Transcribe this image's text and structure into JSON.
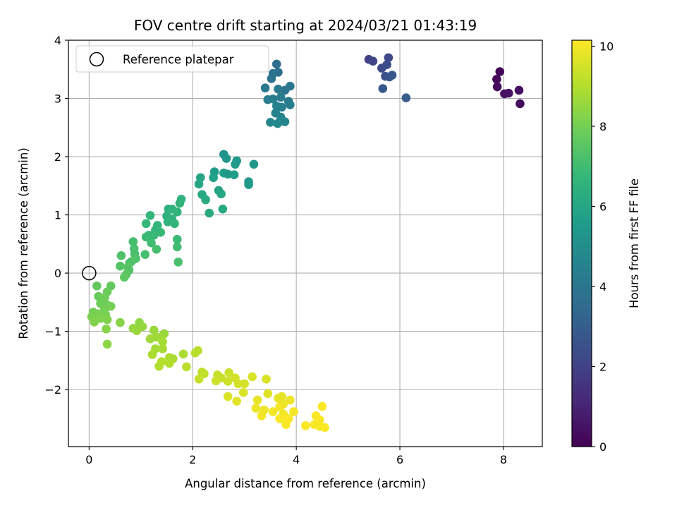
{
  "chart_data": {
    "type": "scatter",
    "title": "FOV centre drift starting at 2024/03/21 01:43:19",
    "xlabel": "Angular distance from reference (arcmin)",
    "ylabel": "Rotation from reference (arcmin)",
    "xlim": [
      -0.4,
      8.75
    ],
    "ylim": [
      -2.98,
      4.0
    ],
    "xticks": [
      0,
      2,
      4,
      6,
      8
    ],
    "xtick_labels": [
      "0",
      "2",
      "4",
      "6",
      "8"
    ],
    "yticks": [
      -2,
      -1,
      0,
      1,
      2,
      3,
      4
    ],
    "ytick_labels": [
      "−2",
      "−1",
      "0",
      "1",
      "2",
      "3",
      "4"
    ],
    "grid": true,
    "legend": {
      "placement": "top-left",
      "entries": [
        "Reference platepar"
      ]
    },
    "colorbar": {
      "label": "Hours from first FF file",
      "colormap": "viridis",
      "range": [
        0,
        10.15
      ],
      "ticks": [
        0,
        2,
        4,
        6,
        8,
        10
      ],
      "tick_labels": [
        "0",
        "2",
        "4",
        "6",
        "8",
        "10"
      ]
    },
    "reference_point": {
      "x": 0,
      "y": 0
    },
    "points": [
      {
        "x": 7.93,
        "y": 3.46,
        "t": 0.1
      },
      {
        "x": 7.87,
        "y": 3.33,
        "t": 0.2
      },
      {
        "x": 7.88,
        "y": 3.2,
        "t": 0.3
      },
      {
        "x": 8.02,
        "y": 3.08,
        "t": 0.4
      },
      {
        "x": 8.1,
        "y": 3.09,
        "t": 0.5
      },
      {
        "x": 8.3,
        "y": 3.14,
        "t": 0.4
      },
      {
        "x": 8.32,
        "y": 2.91,
        "t": 0.3
      },
      {
        "x": 5.4,
        "y": 3.67,
        "t": 2.0
      },
      {
        "x": 5.48,
        "y": 3.64,
        "t": 2.1
      },
      {
        "x": 5.78,
        "y": 3.7,
        "t": 2.2
      },
      {
        "x": 5.65,
        "y": 3.52,
        "t": 2.3
      },
      {
        "x": 5.75,
        "y": 3.58,
        "t": 2.4
      },
      {
        "x": 5.72,
        "y": 3.38,
        "t": 2.5
      },
      {
        "x": 5.8,
        "y": 3.37,
        "t": 2.6
      },
      {
        "x": 5.85,
        "y": 3.4,
        "t": 2.7
      },
      {
        "x": 5.67,
        "y": 3.17,
        "t": 2.8
      },
      {
        "x": 6.12,
        "y": 3.01,
        "t": 2.9
      },
      {
        "x": 3.62,
        "y": 3.59,
        "t": 3.6
      },
      {
        "x": 3.65,
        "y": 3.45,
        "t": 3.7
      },
      {
        "x": 3.55,
        "y": 3.43,
        "t": 3.8
      },
      {
        "x": 3.52,
        "y": 3.34,
        "t": 3.9
      },
      {
        "x": 3.88,
        "y": 3.21,
        "t": 4.0
      },
      {
        "x": 3.4,
        "y": 3.18,
        "t": 4.1
      },
      {
        "x": 3.65,
        "y": 3.16,
        "t": 4.2
      },
      {
        "x": 3.78,
        "y": 3.14,
        "t": 4.0
      },
      {
        "x": 3.45,
        "y": 2.98,
        "t": 4.3
      },
      {
        "x": 3.55,
        "y": 2.99,
        "t": 4.4
      },
      {
        "x": 3.7,
        "y": 3.02,
        "t": 4.2
      },
      {
        "x": 3.85,
        "y": 2.95,
        "t": 4.1
      },
      {
        "x": 3.62,
        "y": 2.87,
        "t": 4.5
      },
      {
        "x": 3.72,
        "y": 2.85,
        "t": 4.4
      },
      {
        "x": 3.88,
        "y": 2.89,
        "t": 4.3
      },
      {
        "x": 3.7,
        "y": 2.68,
        "t": 4.6
      },
      {
        "x": 3.5,
        "y": 2.59,
        "t": 4.7
      },
      {
        "x": 3.64,
        "y": 2.57,
        "t": 4.8
      },
      {
        "x": 3.78,
        "y": 2.6,
        "t": 4.7
      },
      {
        "x": 3.6,
        "y": 2.75,
        "t": 4.5
      },
      {
        "x": 2.6,
        "y": 2.04,
        "t": 5.2
      },
      {
        "x": 2.65,
        "y": 1.97,
        "t": 5.3
      },
      {
        "x": 2.85,
        "y": 1.93,
        "t": 5.4
      },
      {
        "x": 2.82,
        "y": 1.87,
        "t": 5.5
      },
      {
        "x": 3.18,
        "y": 1.87,
        "t": 5.3
      },
      {
        "x": 2.42,
        "y": 1.74,
        "t": 5.6
      },
      {
        "x": 2.6,
        "y": 1.72,
        "t": 5.7
      },
      {
        "x": 2.68,
        "y": 1.7,
        "t": 5.5
      },
      {
        "x": 2.8,
        "y": 1.69,
        "t": 5.6
      },
      {
        "x": 3.08,
        "y": 1.57,
        "t": 5.4
      },
      {
        "x": 3.08,
        "y": 1.52,
        "t": 5.5
      },
      {
        "x": 2.15,
        "y": 1.64,
        "t": 5.9
      },
      {
        "x": 2.4,
        "y": 1.64,
        "t": 5.8
      },
      {
        "x": 2.12,
        "y": 1.53,
        "t": 6.0
      },
      {
        "x": 2.5,
        "y": 1.42,
        "t": 5.9
      },
      {
        "x": 2.55,
        "y": 1.36,
        "t": 6.0
      },
      {
        "x": 2.18,
        "y": 1.35,
        "t": 6.1
      },
      {
        "x": 2.25,
        "y": 1.26,
        "t": 6.2
      },
      {
        "x": 2.58,
        "y": 1.1,
        "t": 6.1
      },
      {
        "x": 2.32,
        "y": 1.03,
        "t": 6.2
      },
      {
        "x": 1.78,
        "y": 1.27,
        "t": 6.5
      },
      {
        "x": 1.75,
        "y": 1.2,
        "t": 6.6
      },
      {
        "x": 1.53,
        "y": 1.1,
        "t": 6.4
      },
      {
        "x": 1.6,
        "y": 1.1,
        "t": 6.5
      },
      {
        "x": 1.7,
        "y": 1.05,
        "t": 6.6
      },
      {
        "x": 1.18,
        "y": 0.99,
        "t": 6.7
      },
      {
        "x": 1.5,
        "y": 0.98,
        "t": 6.4
      },
      {
        "x": 1.6,
        "y": 0.93,
        "t": 6.5
      },
      {
        "x": 1.52,
        "y": 0.88,
        "t": 6.6
      },
      {
        "x": 1.65,
        "y": 0.85,
        "t": 6.7
      },
      {
        "x": 1.1,
        "y": 0.85,
        "t": 6.8
      },
      {
        "x": 1.32,
        "y": 0.82,
        "t": 6.7
      },
      {
        "x": 1.38,
        "y": 0.7,
        "t": 6.8
      },
      {
        "x": 1.15,
        "y": 0.65,
        "t": 6.9
      },
      {
        "x": 1.28,
        "y": 0.74,
        "t": 6.7
      },
      {
        "x": 1.25,
        "y": 0.65,
        "t": 6.8
      },
      {
        "x": 1.1,
        "y": 0.62,
        "t": 6.9
      },
      {
        "x": 1.7,
        "y": 0.58,
        "t": 6.9
      },
      {
        "x": 1.7,
        "y": 0.45,
        "t": 7.0
      },
      {
        "x": 1.2,
        "y": 0.52,
        "t": 7.0
      },
      {
        "x": 1.3,
        "y": 0.41,
        "t": 7.1
      },
      {
        "x": 0.85,
        "y": 0.54,
        "t": 7.1
      },
      {
        "x": 0.87,
        "y": 0.42,
        "t": 7.2
      },
      {
        "x": 0.88,
        "y": 0.33,
        "t": 7.2
      },
      {
        "x": 1.08,
        "y": 0.32,
        "t": 7.1
      },
      {
        "x": 0.62,
        "y": 0.3,
        "t": 7.3
      },
      {
        "x": 0.9,
        "y": 0.25,
        "t": 7.3
      },
      {
        "x": 0.82,
        "y": 0.2,
        "t": 7.4
      },
      {
        "x": 0.78,
        "y": 0.17,
        "t": 7.3
      },
      {
        "x": 1.72,
        "y": 0.19,
        "t": 7.2
      },
      {
        "x": 0.6,
        "y": 0.12,
        "t": 7.4
      },
      {
        "x": 0.75,
        "y": 0.1,
        "t": 7.5
      },
      {
        "x": 0.77,
        "y": 0.05,
        "t": 7.4
      },
      {
        "x": 0.72,
        "y": -0.02,
        "t": 7.5
      },
      {
        "x": 0.68,
        "y": -0.07,
        "t": 7.6
      },
      {
        "x": 0.15,
        "y": -0.22,
        "t": 7.7
      },
      {
        "x": 0.42,
        "y": -0.22,
        "t": 7.7
      },
      {
        "x": 0.35,
        "y": -0.32,
        "t": 7.8
      },
      {
        "x": 0.18,
        "y": -0.4,
        "t": 7.8
      },
      {
        "x": 0.3,
        "y": -0.42,
        "t": 7.9
      },
      {
        "x": 0.22,
        "y": -0.52,
        "t": 7.9
      },
      {
        "x": 0.35,
        "y": -0.55,
        "t": 7.9
      },
      {
        "x": 0.42,
        "y": -0.57,
        "t": 8.0
      },
      {
        "x": 0.3,
        "y": -0.62,
        "t": 8.0
      },
      {
        "x": 0.08,
        "y": -0.67,
        "t": 8.0
      },
      {
        "x": 0.18,
        "y": -0.7,
        "t": 8.1
      },
      {
        "x": 0.32,
        "y": -0.72,
        "t": 8.1
      },
      {
        "x": 0.05,
        "y": -0.75,
        "t": 8.1
      },
      {
        "x": 0.22,
        "y": -0.78,
        "t": 8.2
      },
      {
        "x": 0.35,
        "y": -0.8,
        "t": 8.2
      },
      {
        "x": 0.1,
        "y": -0.84,
        "t": 8.2
      },
      {
        "x": 0.6,
        "y": -0.85,
        "t": 8.3
      },
      {
        "x": 0.33,
        "y": -0.96,
        "t": 8.3
      },
      {
        "x": 0.35,
        "y": -1.22,
        "t": 8.4
      },
      {
        "x": 0.97,
        "y": -0.85,
        "t": 8.4
      },
      {
        "x": 1.03,
        "y": -0.92,
        "t": 8.5
      },
      {
        "x": 0.85,
        "y": -0.95,
        "t": 8.5
      },
      {
        "x": 0.92,
        "y": -0.99,
        "t": 8.6
      },
      {
        "x": 1.25,
        "y": -0.98,
        "t": 8.6
      },
      {
        "x": 1.45,
        "y": -1.04,
        "t": 8.6
      },
      {
        "x": 1.3,
        "y": -1.1,
        "t": 8.7
      },
      {
        "x": 1.38,
        "y": -1.1,
        "t": 8.7
      },
      {
        "x": 1.18,
        "y": -1.13,
        "t": 8.7
      },
      {
        "x": 1.42,
        "y": -1.18,
        "t": 8.8
      },
      {
        "x": 1.28,
        "y": -1.3,
        "t": 8.8
      },
      {
        "x": 1.42,
        "y": -1.3,
        "t": 8.8
      },
      {
        "x": 1.22,
        "y": -1.4,
        "t": 8.9
      },
      {
        "x": 1.55,
        "y": -1.45,
        "t": 8.9
      },
      {
        "x": 1.62,
        "y": -1.47,
        "t": 8.9
      },
      {
        "x": 1.82,
        "y": -1.39,
        "t": 8.9
      },
      {
        "x": 1.4,
        "y": -1.52,
        "t": 9.0
      },
      {
        "x": 1.55,
        "y": -1.55,
        "t": 9.0
      },
      {
        "x": 1.35,
        "y": -1.6,
        "t": 9.0
      },
      {
        "x": 1.88,
        "y": -1.61,
        "t": 9.1
      },
      {
        "x": 2.1,
        "y": -1.33,
        "t": 9.1
      },
      {
        "x": 2.05,
        "y": -1.37,
        "t": 9.1
      },
      {
        "x": 2.18,
        "y": -1.7,
        "t": 9.2
      },
      {
        "x": 2.22,
        "y": -1.73,
        "t": 9.2
      },
      {
        "x": 2.12,
        "y": -1.82,
        "t": 9.3
      },
      {
        "x": 2.48,
        "y": -1.75,
        "t": 9.3
      },
      {
        "x": 2.55,
        "y": -1.8,
        "t": 9.3
      },
      {
        "x": 2.7,
        "y": -1.71,
        "t": 9.4
      },
      {
        "x": 2.45,
        "y": -1.85,
        "t": 9.4
      },
      {
        "x": 2.68,
        "y": -1.86,
        "t": 9.4
      },
      {
        "x": 2.82,
        "y": -1.8,
        "t": 9.5
      },
      {
        "x": 2.88,
        "y": -1.9,
        "t": 9.5
      },
      {
        "x": 3.0,
        "y": -1.9,
        "t": 9.5
      },
      {
        "x": 3.15,
        "y": -1.78,
        "t": 9.6
      },
      {
        "x": 3.42,
        "y": -1.82,
        "t": 9.6
      },
      {
        "x": 2.98,
        "y": -2.05,
        "t": 9.6
      },
      {
        "x": 2.68,
        "y": -2.12,
        "t": 9.6
      },
      {
        "x": 2.85,
        "y": -2.2,
        "t": 9.7
      },
      {
        "x": 3.45,
        "y": -2.07,
        "t": 9.7
      },
      {
        "x": 3.25,
        "y": -2.18,
        "t": 9.8
      },
      {
        "x": 3.65,
        "y": -2.15,
        "t": 9.8
      },
      {
        "x": 3.72,
        "y": -2.12,
        "t": 9.8
      },
      {
        "x": 3.88,
        "y": -2.18,
        "t": 9.9
      },
      {
        "x": 3.75,
        "y": -2.25,
        "t": 9.9
      },
      {
        "x": 3.22,
        "y": -2.32,
        "t": 9.9
      },
      {
        "x": 3.38,
        "y": -2.35,
        "t": 9.9
      },
      {
        "x": 3.68,
        "y": -2.3,
        "t": 10.0
      },
      {
        "x": 3.55,
        "y": -2.38,
        "t": 10.0
      },
      {
        "x": 3.75,
        "y": -2.42,
        "t": 10.0
      },
      {
        "x": 3.95,
        "y": -2.38,
        "t": 10.0
      },
      {
        "x": 3.33,
        "y": -2.45,
        "t": 10.0
      },
      {
        "x": 3.85,
        "y": -2.5,
        "t": 10.1
      },
      {
        "x": 3.68,
        "y": -2.5,
        "t": 10.1
      },
      {
        "x": 3.8,
        "y": -2.6,
        "t": 10.1
      },
      {
        "x": 4.5,
        "y": -2.29,
        "t": 10.1
      },
      {
        "x": 4.38,
        "y": -2.45,
        "t": 10.1
      },
      {
        "x": 4.45,
        "y": -2.52,
        "t": 10.1
      },
      {
        "x": 4.18,
        "y": -2.62,
        "t": 10.1
      },
      {
        "x": 4.35,
        "y": -2.6,
        "t": 10.1
      },
      {
        "x": 4.45,
        "y": -2.63,
        "t": 10.1
      },
      {
        "x": 4.55,
        "y": -2.65,
        "t": 10.1
      }
    ]
  }
}
